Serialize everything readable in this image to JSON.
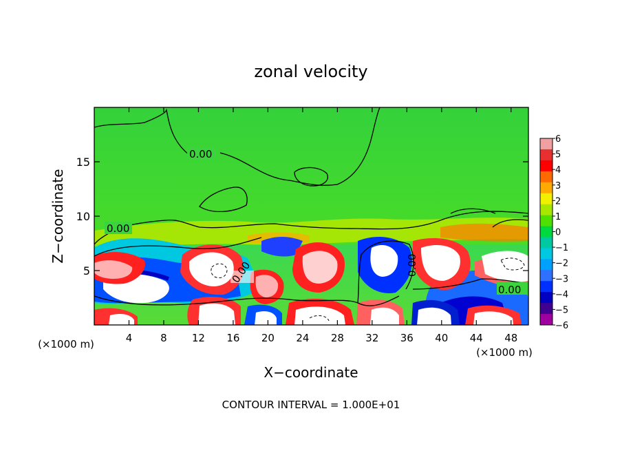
{
  "chart_data": {
    "type": "heatmap",
    "title": "zonal velocity",
    "xlabel": "X−coordinate",
    "ylabel": "Z−coordinate",
    "x_unit_left": "(×1000 m)",
    "x_unit_right": "(×1000 m)",
    "xlim": [
      0,
      50
    ],
    "ylim": [
      0,
      20
    ],
    "xticks": [
      4,
      8,
      12,
      16,
      20,
      24,
      28,
      32,
      36,
      40,
      44,
      48
    ],
    "yticks": [
      5,
      10,
      15
    ],
    "footer": "CONTOUR INTERVAL = 1.000E+01",
    "contour_labels": [
      "0.00",
      "0.00",
      "0.00",
      "0.00",
      "0.00"
    ],
    "colorbar": {
      "ticks": [
        6,
        5,
        4,
        3,
        2,
        1,
        0,
        -1,
        -2,
        -3,
        -4,
        -5,
        -6
      ],
      "colors": [
        "#f0a0a0",
        "#e83030",
        "#ff0000",
        "#ff6a00",
        "#ffaa00",
        "#f0f000",
        "#a8e800",
        "#50e000",
        "#00d840",
        "#00c8a0",
        "#00c8e0",
        "#00a0ff",
        "#3070ff",
        "#0030ff",
        "#0000c0",
        "#400090",
        "#a000a0"
      ]
    },
    "field": {
      "background": "#3ed63a",
      "upper_color": "#32df3c",
      "lower_color": "#33e53a"
    }
  }
}
